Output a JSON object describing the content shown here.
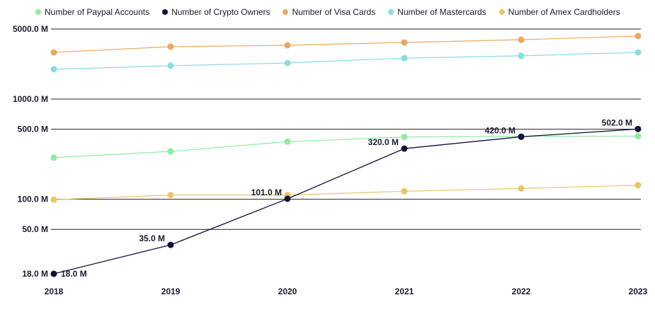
{
  "chart_data": {
    "type": "line",
    "y_scale": "log",
    "grid": true,
    "legend_placement": "top",
    "x": [
      "2018",
      "2019",
      "2020",
      "2021",
      "2022",
      "2023"
    ],
    "y_ticks": [
      "18.0 M",
      "50.0 M",
      "100.0 M",
      "500.0 M",
      "1000.0 M",
      "5000.0 M"
    ],
    "y_tick_values": [
      18,
      50,
      100,
      500,
      1000,
      5000
    ],
    "ylim": [
      18,
      5000
    ],
    "series": [
      {
        "name": "Number of Paypal Accounts",
        "color": "#8EEBA0",
        "values": [
          260,
          300,
          375,
          418,
          425,
          426
        ]
      },
      {
        "name": "Number of Crypto Owners",
        "color": "#12123A",
        "values": [
          18,
          35,
          101,
          320,
          420,
          502
        ],
        "labels": [
          "18.0 M",
          "35.0 M",
          "101.0 M",
          "320.0 M",
          "420.0 M",
          "502.0 M"
        ]
      },
      {
        "name": "Number of Visa Cards",
        "color": "#E8A965",
        "values": [
          2920,
          3330,
          3440,
          3670,
          3910,
          4250
        ]
      },
      {
        "name": "Number of Mastercards",
        "color": "#8ADDE2",
        "values": [
          1980,
          2150,
          2290,
          2560,
          2700,
          2920
        ]
      },
      {
        "name": "Number of Amex Cardholders",
        "color": "#EAC46B",
        "values": [
          99,
          110,
          110,
          120,
          128,
          138
        ]
      }
    ]
  }
}
